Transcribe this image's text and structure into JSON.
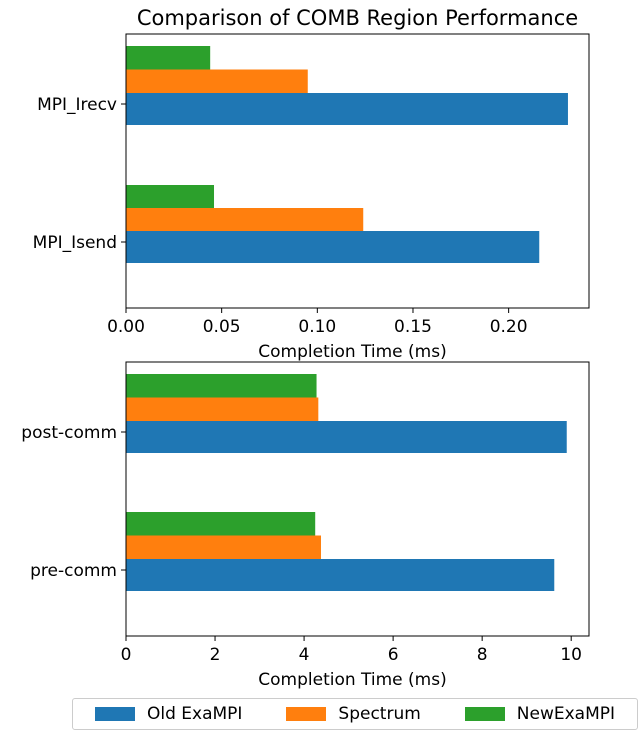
{
  "chart_data": [
    {
      "type": "bar",
      "orientation": "horizontal",
      "title": "Comparison of COMB Region Performance",
      "xlabel": "Completion Time (ms)",
      "xlim": [
        0,
        0.242
      ],
      "xticks": [
        "0.00",
        "0.05",
        "0.10",
        "0.15",
        "0.20"
      ],
      "xtick_values": [
        0,
        0.05,
        0.1,
        0.15,
        0.2
      ],
      "categories": [
        "MPI_Irecv",
        "MPI_Isend"
      ],
      "series": [
        {
          "name": "Old ExaMPI",
          "color": "#1f77b4",
          "values": [
            0.231,
            0.216
          ]
        },
        {
          "name": "Spectrum",
          "color": "#ff7f0e",
          "values": [
            0.095,
            0.124
          ]
        },
        {
          "name": "NewExaMPI",
          "color": "#2ca02c",
          "values": [
            0.044,
            0.046
          ]
        }
      ]
    },
    {
      "type": "bar",
      "orientation": "horizontal",
      "title": "",
      "xlabel": "Completion Time (ms)",
      "xlim": [
        0,
        10.4
      ],
      "xticks": [
        "0",
        "2",
        "4",
        "6",
        "8",
        "10"
      ],
      "xtick_values": [
        0,
        2,
        4,
        6,
        8,
        10
      ],
      "categories": [
        "post-comm",
        "pre-comm"
      ],
      "series": [
        {
          "name": "Old ExaMPI",
          "color": "#1f77b4",
          "values": [
            9.9,
            9.62
          ]
        },
        {
          "name": "Spectrum",
          "color": "#ff7f0e",
          "values": [
            4.32,
            4.38
          ]
        },
        {
          "name": "NewExaMPI",
          "color": "#2ca02c",
          "values": [
            4.28,
            4.25
          ]
        }
      ]
    }
  ],
  "legend": {
    "position": "bottom",
    "items": [
      {
        "label": "Old ExaMPI",
        "color": "#1f77b4"
      },
      {
        "label": "Spectrum",
        "color": "#ff7f0e"
      },
      {
        "label": "NewExaMPI",
        "color": "#2ca02c"
      }
    ]
  }
}
